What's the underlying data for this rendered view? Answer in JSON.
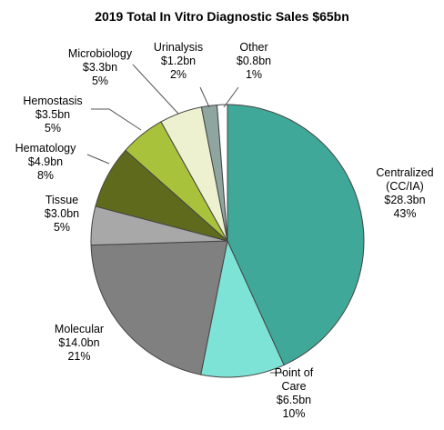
{
  "chart_data": {
    "type": "pie",
    "title": "2019 Total In Vitro Diagnostic Sales $65bn",
    "categories": [
      "Centralized\n(CC/IA)",
      "Point of\nCare",
      "Molecular",
      "Tissue",
      "Hematology",
      "Hemostasis",
      "Microbiology",
      "Urinalysis",
      "Other"
    ],
    "values": [
      28.3,
      6.5,
      14.0,
      3.0,
      4.9,
      3.5,
      3.3,
      1.2,
      0.8
    ],
    "value_labels": [
      "$28.3bn",
      "$6.5bn",
      "$14.0bn",
      "$3.0bn",
      "$4.9bn",
      "$3.5bn",
      "$3.3bn",
      "$1.2bn",
      "$0.8bn"
    ],
    "percents": [
      43,
      10,
      21,
      5,
      8,
      5,
      5,
      2,
      1
    ],
    "percent_labels": [
      "43%",
      "10%",
      "21%",
      "5%",
      "8%",
      "5%",
      "5%",
      "2%",
      "1%"
    ],
    "colors": [
      "#40a898",
      "#7ee3d7",
      "#808080",
      "#a8a8a8",
      "#5f6a1d",
      "#a8c23c",
      "#eef1cf",
      "#8ea69f",
      "#ffffff"
    ]
  }
}
